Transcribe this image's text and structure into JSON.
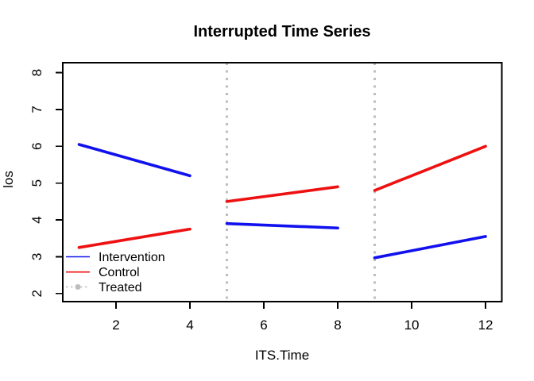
{
  "chart_data": {
    "type": "line",
    "title": "Interrupted Time Series",
    "xlabel": "ITS.Time",
    "ylabel": "los",
    "xlim": [
      0.56,
      12.44
    ],
    "ylim": [
      1.78,
      8.27
    ],
    "x_ticks": [
      "2",
      "4",
      "6",
      "8",
      "10",
      "12"
    ],
    "x_tick_values": [
      2,
      4,
      6,
      8,
      10,
      12
    ],
    "y_ticks": [
      "2",
      "3",
      "4",
      "5",
      "6",
      "7",
      "8"
    ],
    "y_tick_values": [
      2,
      3,
      4,
      5,
      6,
      7,
      8
    ],
    "grid": false,
    "series": [
      {
        "name": "Intervention",
        "color": "#1111ee",
        "style": "solid",
        "segments": [
          [
            [
              1,
              6.05
            ],
            [
              4,
              5.2
            ]
          ],
          [
            [
              5,
              3.9
            ],
            [
              8,
              3.78
            ]
          ],
          [
            [
              9,
              2.97
            ],
            [
              12,
              3.55
            ]
          ]
        ]
      },
      {
        "name": "Control",
        "color": "#ee1111",
        "style": "solid",
        "segments": [
          [
            [
              1,
              3.25
            ],
            [
              4,
              3.75
            ]
          ],
          [
            [
              5,
              4.5
            ],
            [
              8,
              4.9
            ]
          ],
          [
            [
              9,
              4.8
            ],
            [
              12,
              6.0
            ]
          ]
        ]
      }
    ],
    "vlines": {
      "name": "Treated",
      "color": "#bebebe",
      "style": "dotted",
      "x_values": [
        5,
        9
      ]
    },
    "legend": {
      "position": "bottomleft",
      "entries": [
        {
          "label": "Intervention",
          "color": "#1111ee",
          "style": "solid",
          "marker": false
        },
        {
          "label": "Control",
          "color": "#ee1111",
          "style": "solid",
          "marker": false
        },
        {
          "label": "Treated",
          "color": "#bebebe",
          "style": "dotted",
          "marker": true
        }
      ]
    }
  }
}
